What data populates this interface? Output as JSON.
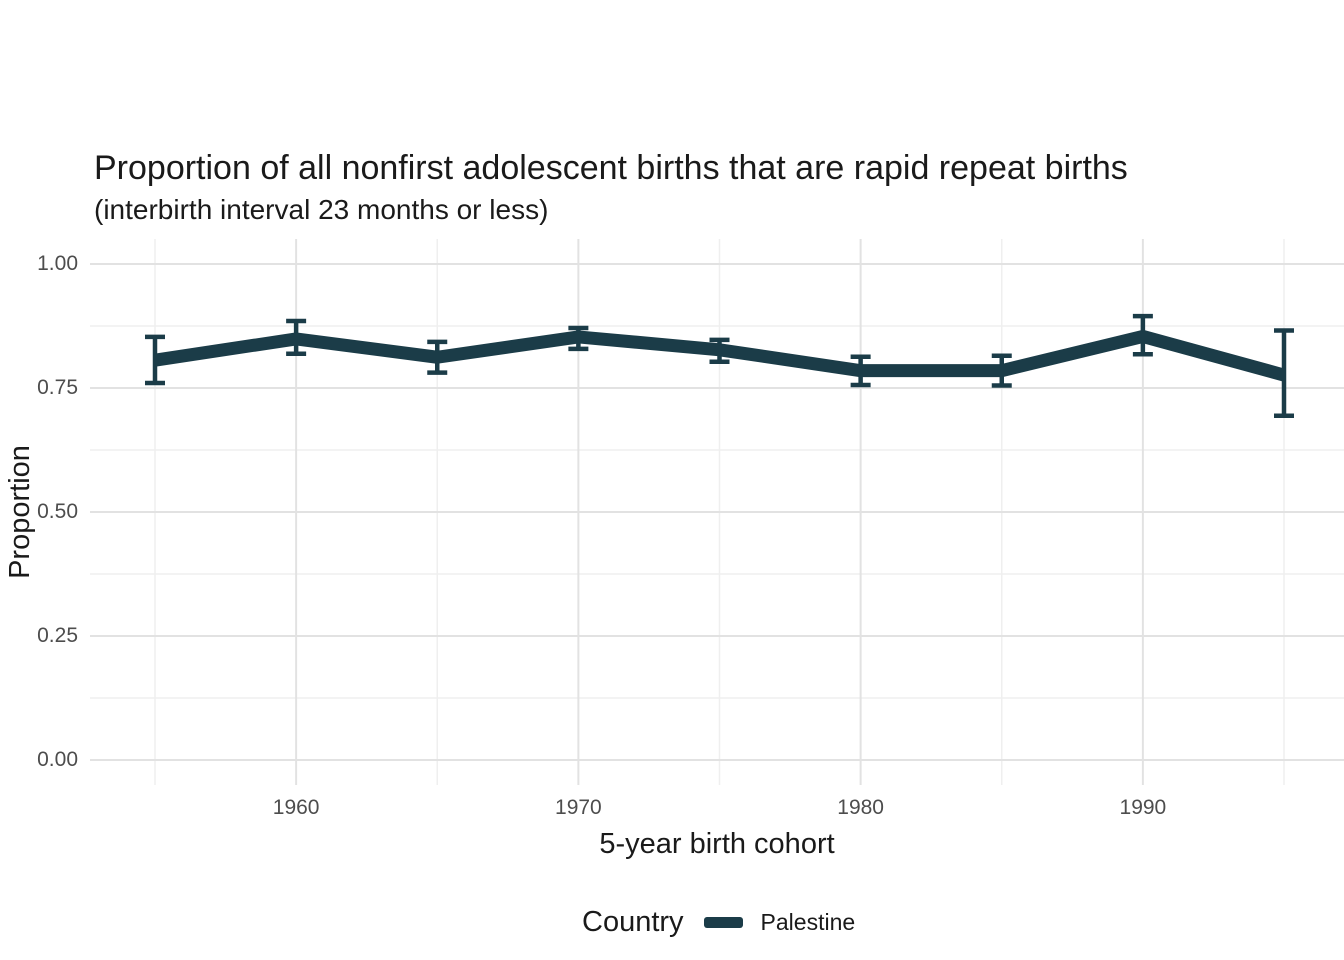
{
  "header": {
    "title": "Proportion of all nonfirst adolescent births that are rapid repeat births",
    "subtitle": "(interbirth interval 23 months or less)"
  },
  "axes": {
    "x": {
      "label": "5-year birth cohort"
    },
    "y": {
      "label": "Proportion"
    }
  },
  "legend": {
    "title": "Country",
    "entries": [
      {
        "label": "Palestine",
        "color": "#1b3c48"
      }
    ]
  },
  "colors": {
    "line": "#1b3c48",
    "grid_major": "#e2e2e2",
    "grid_minor": "#efefef",
    "tick_text": "#4d4d4d",
    "text": "#1a1a1a",
    "background": "#ffffff"
  },
  "chart_data": {
    "type": "line",
    "title": "Proportion of all nonfirst adolescent births that are rapid repeat births",
    "subtitle": "(interbirth interval 23 months or less)",
    "xlabel": "5-year birth cohort",
    "ylabel": "Proportion",
    "x": [
      1955,
      1960,
      1965,
      1970,
      1975,
      1980,
      1985,
      1990,
      1995
    ],
    "series": [
      {
        "name": "Palestine",
        "color": "#1b3c48",
        "values": [
          0.806,
          0.849,
          0.812,
          0.853,
          0.827,
          0.785,
          0.785,
          0.854,
          0.776
        ],
        "ci_low": [
          0.76,
          0.819,
          0.781,
          0.829,
          0.803,
          0.756,
          0.755,
          0.818,
          0.694
        ],
        "ci_high": [
          0.853,
          0.885,
          0.843,
          0.871,
          0.847,
          0.813,
          0.815,
          0.895,
          0.866
        ]
      }
    ],
    "error_bars": true,
    "xticks": [
      1960,
      1970,
      1980,
      1990
    ],
    "xtick_labels": [
      "1960",
      "1970",
      "1980",
      "1990"
    ],
    "yticks": [
      0,
      0.25,
      0.5,
      0.75,
      1.0
    ],
    "ytick_labels": [
      "0.00",
      "0.25",
      "0.50",
      "0.75",
      "1.00"
    ],
    "xlim": [
      1952.7,
      1997.3
    ],
    "ylim": [
      -0.05,
      1.05
    ],
    "grid": "major and minor gridlines, light gray, no axis lines, no tick marks",
    "legend_position": "bottom"
  }
}
